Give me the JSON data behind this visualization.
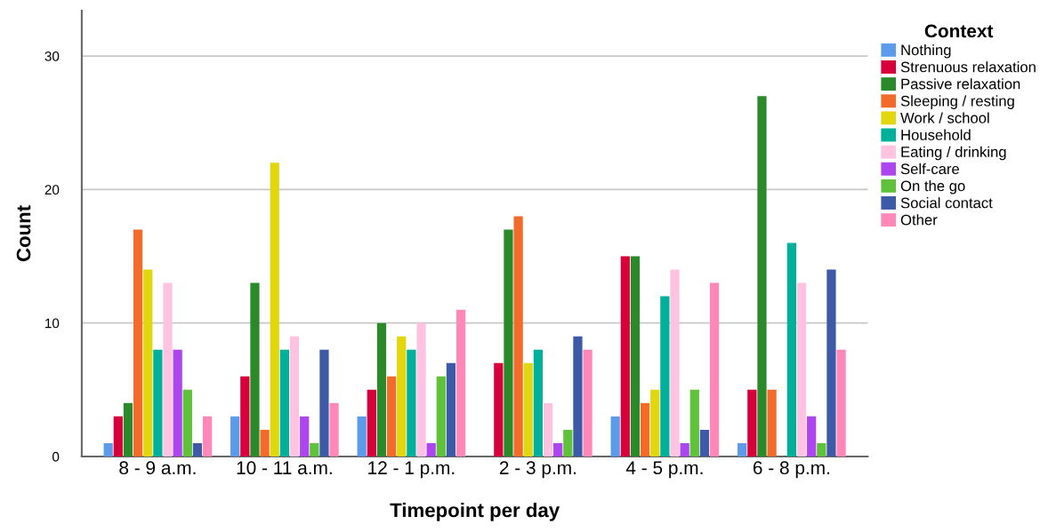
{
  "chart_data": {
    "type": "bar",
    "xlabel": "Timepoint per day",
    "ylabel": "Count",
    "legend_title": "Context",
    "categories": [
      "8 - 9 a.m.",
      "10 - 11 a.m.",
      "12 - 1 p.m.",
      "2 - 3 p.m.",
      "4 - 5 p.m.",
      "6 - 8 p.m."
    ],
    "series": [
      {
        "name": "Nothing",
        "color": "#5b9bea",
        "values": [
          1,
          3,
          3,
          null,
          3,
          1
        ]
      },
      {
        "name": "Strenuous relaxation",
        "color": "#d8003a",
        "values": [
          3,
          6,
          5,
          7,
          15,
          5
        ]
      },
      {
        "name": "Passive relaxation",
        "color": "#2a8a2a",
        "values": [
          4,
          13,
          10,
          17,
          15,
          27
        ]
      },
      {
        "name": "Sleeping / resting",
        "color": "#f26b2a",
        "values": [
          17,
          2,
          6,
          18,
          4,
          5
        ]
      },
      {
        "name": "Work / school",
        "color": "#e2d60e",
        "values": [
          14,
          22,
          9,
          7,
          5,
          null
        ]
      },
      {
        "name": "Household",
        "color": "#00b09b",
        "values": [
          8,
          8,
          8,
          8,
          12,
          16
        ]
      },
      {
        "name": "Eating / drinking",
        "color": "#ffc2e0",
        "values": [
          13,
          9,
          10,
          4,
          14,
          13
        ]
      },
      {
        "name": "Self-care",
        "color": "#ad45f0",
        "values": [
          8,
          3,
          1,
          1,
          1,
          3
        ]
      },
      {
        "name": "On the go",
        "color": "#5fc23a",
        "values": [
          5,
          1,
          6,
          2,
          5,
          1
        ]
      },
      {
        "name": "Social contact",
        "color": "#3c5aa8",
        "values": [
          1,
          8,
          7,
          9,
          2,
          14
        ]
      },
      {
        "name": "Other",
        "color": "#ff88b8",
        "values": [
          3,
          4,
          11,
          8,
          13,
          8
        ]
      }
    ],
    "ylim": [
      0,
      33.4
    ],
    "yticks": [
      0,
      10,
      20,
      30
    ],
    "grid": "y",
    "legend": "right"
  }
}
